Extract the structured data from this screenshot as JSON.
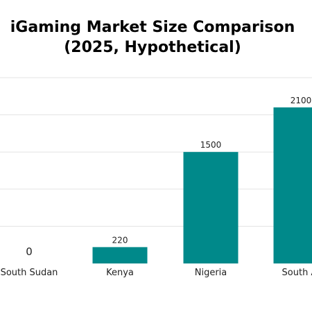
{
  "chart_data": {
    "type": "bar",
    "title_lines": [
      "iGaming Market Size Comparison",
      "(2025, Hypothetical)"
    ],
    "categories": [
      "South Sudan",
      "Kenya",
      "Nigeria",
      "South Af"
    ],
    "values": [
      0,
      220,
      1500,
      2100
    ],
    "value_labels": [
      "0",
      "220",
      "1500",
      "2100"
    ],
    "xlabel": "",
    "ylabel": "",
    "ylim": [
      0,
      2500
    ],
    "grid": true,
    "bar_color": "#00898a",
    "grid_color": "#e3e3e3"
  }
}
